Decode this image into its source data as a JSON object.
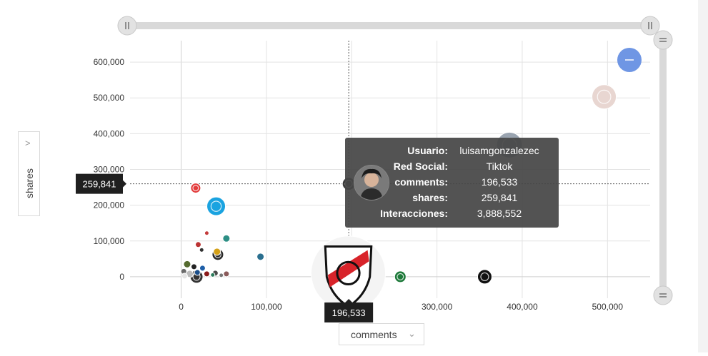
{
  "chart_data": {
    "type": "scatter",
    "title": "",
    "xlabel": "comments",
    "ylabel": "shares",
    "xlim": [
      -60000,
      550000
    ],
    "ylim": [
      -60000,
      660000
    ],
    "x_ticks": [
      0,
      100000,
      200000,
      300000,
      400000,
      500000
    ],
    "x_tick_labels": [
      "0",
      "100,000",
      "200,000",
      "300,000",
      "400,000",
      "500,000"
    ],
    "y_ticks": [
      0,
      100000,
      200000,
      300000,
      400000,
      500000,
      600000
    ],
    "y_tick_labels": [
      "0",
      "100,000",
      "200,000",
      "300,000",
      "400,000",
      "500,000",
      "600,000"
    ],
    "grid": true,
    "points": [
      {
        "x": 496000,
        "y": 503000,
        "r": 17,
        "color": "#e8d6d1"
      },
      {
        "x": 385000,
        "y": 368000,
        "r": 18,
        "color": "#9aa4b0"
      },
      {
        "x": 196533,
        "y": 259841,
        "r": 9,
        "color": "#3b3b3b"
      },
      {
        "x": 17000,
        "y": 248000,
        "r": 7,
        "color": "#e23b3b"
      },
      {
        "x": 41000,
        "y": 197000,
        "r": 13,
        "color": "#1aa3e0"
      },
      {
        "x": 356000,
        "y": 0,
        "r": 10,
        "color": "#111111"
      },
      {
        "x": 257000,
        "y": 0,
        "r": 8,
        "color": "#1e7a3a"
      },
      {
        "x": 196000,
        "y": 10000,
        "r": 52,
        "color": "#f4f4f4"
      },
      {
        "x": 93000,
        "y": 56000,
        "r": 5,
        "color": "#2a6f8f"
      },
      {
        "x": 53000,
        "y": 107000,
        "r": 5,
        "color": "#2d8f85"
      },
      {
        "x": 43000,
        "y": 62000,
        "r": 8,
        "color": "#2a2a2a"
      },
      {
        "x": 30000,
        "y": 122000,
        "r": 3,
        "color": "#c43b3b"
      },
      {
        "x": 20000,
        "y": 90000,
        "r": 4,
        "color": "#b33"
      },
      {
        "x": 24000,
        "y": 75000,
        "r": 3,
        "color": "#333"
      },
      {
        "x": 42000,
        "y": 70000,
        "r": 5,
        "color": "#d4a017"
      },
      {
        "x": 7000,
        "y": 35000,
        "r": 5,
        "color": "#556b2f"
      },
      {
        "x": 15000,
        "y": 28000,
        "r": 4,
        "color": "#222"
      },
      {
        "x": 25000,
        "y": 24000,
        "r": 4,
        "color": "#1f5fa8"
      },
      {
        "x": 3000,
        "y": 15000,
        "r": 4,
        "color": "#6a6a6a"
      },
      {
        "x": 10000,
        "y": 8000,
        "r": 5,
        "color": "#bbb"
      },
      {
        "x": 19000,
        "y": 12000,
        "r": 4,
        "color": "#1a4e8a"
      },
      {
        "x": 30000,
        "y": 8000,
        "r": 4,
        "color": "#8a1a1a"
      },
      {
        "x": 18000,
        "y": 0,
        "r": 9,
        "color": "#333"
      },
      {
        "x": 4000,
        "y": 2000,
        "r": 4,
        "color": "#e5e5e5"
      },
      {
        "x": 40000,
        "y": 10000,
        "r": 4,
        "color": "#4a4a4a"
      },
      {
        "x": 53000,
        "y": 8000,
        "r": 4,
        "color": "#8a5a5a"
      },
      {
        "x": 47000,
        "y": 4000,
        "r": 3,
        "color": "#777"
      },
      {
        "x": 37000,
        "y": 5000,
        "r": 3,
        "color": "#2a7a5a"
      }
    ],
    "highlight": {
      "x": 196533,
      "y": 259841,
      "x_label": "196,533",
      "y_label": "259,841"
    },
    "tooltip": {
      "rows": [
        {
          "key": "Usuario:",
          "value": "luisamgonzalezec"
        },
        {
          "key": "Red Social:",
          "value": "Tiktok"
        },
        {
          "key": "comments:",
          "value": "196,533"
        },
        {
          "key": "shares:",
          "value": "259,841"
        },
        {
          "key": "Interacciones:",
          "value": "3,888,552"
        }
      ]
    },
    "sliders": {
      "horizontal_handle_icon": "grip-vertical-icon",
      "vertical_handle_icon": "grip-horizontal-icon",
      "size_legend_icon": "minus-icon",
      "size_legend_color": "#6f96e4"
    }
  },
  "y_selector": {
    "label": "shares",
    "icon": "chevron-right-icon"
  },
  "x_selector": {
    "label": "comments",
    "icon": "chevron-down-icon"
  }
}
